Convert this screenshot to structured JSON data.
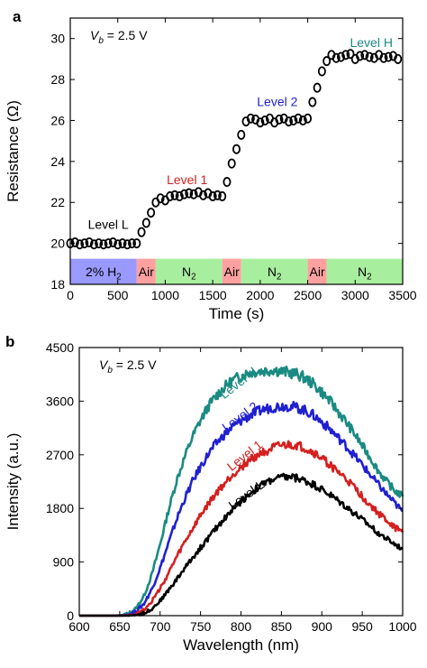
{
  "chart_data": [
    {
      "panel_label": "a",
      "type": "scatter",
      "annotation": "V_b = 2.5 V",
      "annotation_parts": {
        "symbol": "V",
        "subscript": "b",
        "rest": " = 2.5 V"
      },
      "xlabel": "Time (s)",
      "ylabel": "Resistance (Ω)",
      "xlim": [
        0,
        3500
      ],
      "ylim": [
        18,
        31
      ],
      "xticks": [
        0,
        500,
        1000,
        1500,
        2000,
        2500,
        3000,
        3500
      ],
      "yticks": [
        18,
        20,
        22,
        24,
        26,
        28,
        30
      ],
      "grid": false,
      "marker": "open-circle",
      "gas_bands": [
        {
          "label": "2% H",
          "subscript": "2",
          "start": 0,
          "end": 700,
          "color": "#9999ff"
        },
        {
          "label": "Air",
          "subscript": "",
          "start": 700,
          "end": 900,
          "color": "#ffa0a0"
        },
        {
          "label": "N",
          "subscript": "2",
          "start": 900,
          "end": 1600,
          "color": "#a8ee9f"
        },
        {
          "label": "Air",
          "subscript": "",
          "start": 1600,
          "end": 1800,
          "color": "#ffa0a0"
        },
        {
          "label": "N",
          "subscript": "2",
          "start": 1800,
          "end": 2500,
          "color": "#a8ee9f"
        },
        {
          "label": "Air",
          "subscript": "",
          "start": 2500,
          "end": 2700,
          "color": "#ffa0a0"
        },
        {
          "label": "N",
          "subscript": "2",
          "start": 2700,
          "end": 3500,
          "color": "#a8ee9f"
        }
      ],
      "level_labels": [
        {
          "text": "Level L",
          "x": 400,
          "y": 20.7,
          "color": "#000000"
        },
        {
          "text": "Level 1",
          "x": 1230,
          "y": 22.9,
          "color": "#d42020"
        },
        {
          "text": "Level 2",
          "x": 2180,
          "y": 26.7,
          "color": "#2020d0"
        },
        {
          "text": "Level H",
          "x": 3170,
          "y": 29.6,
          "color": "#1a8a82"
        }
      ],
      "series": [
        {
          "x": [
            0,
            50,
            100,
            150,
            200,
            250,
            300,
            350,
            400,
            450,
            500,
            550,
            600,
            650,
            700,
            750,
            800,
            850,
            900,
            950,
            1000,
            1050,
            1100,
            1150,
            1200,
            1250,
            1300,
            1350,
            1400,
            1450,
            1500,
            1550,
            1600,
            1650,
            1700,
            1750,
            1800,
            1850,
            1900,
            1950,
            2000,
            2050,
            2100,
            2150,
            2200,
            2250,
            2300,
            2350,
            2400,
            2450,
            2500,
            2550,
            2600,
            2650,
            2700,
            2750,
            2800,
            2850,
            2900,
            2950,
            3000,
            3050,
            3100,
            3150,
            3200,
            3250,
            3300,
            3350,
            3400,
            3450
          ],
          "values": [
            20.0,
            20.05,
            19.95,
            20.0,
            20.05,
            19.95,
            20.0,
            19.95,
            20.0,
            20.05,
            19.95,
            20.0,
            19.95,
            20.0,
            20.0,
            20.55,
            21.0,
            21.5,
            22.0,
            22.2,
            22.1,
            22.3,
            22.35,
            22.3,
            22.4,
            22.45,
            22.4,
            22.5,
            22.35,
            22.45,
            22.3,
            22.35,
            22.3,
            23.0,
            23.9,
            24.6,
            25.3,
            25.95,
            26.1,
            26.05,
            25.9,
            26.0,
            26.1,
            25.9,
            26.05,
            26.1,
            25.95,
            26.0,
            26.1,
            26.0,
            26.1,
            26.9,
            27.6,
            28.4,
            28.9,
            29.2,
            29.05,
            29.1,
            29.2,
            29.25,
            29.0,
            29.15,
            29.2,
            29.1,
            29.05,
            29.2,
            29.05,
            29.1,
            29.15,
            29.0
          ]
        }
      ]
    },
    {
      "panel_label": "b",
      "type": "line",
      "annotation": "V_b = 2.5 V",
      "annotation_parts": {
        "symbol": "V",
        "subscript": "b",
        "rest": " = 2.5 V"
      },
      "xlabel": "Wavelength (nm)",
      "ylabel": "Intensity (a.u.)",
      "xlim": [
        600,
        1000
      ],
      "ylim": [
        0,
        4500
      ],
      "xticks": [
        600,
        650,
        700,
        750,
        800,
        850,
        900,
        950,
        1000
      ],
      "yticks": [
        0,
        900,
        1800,
        2700,
        3600,
        4500
      ],
      "grid": false,
      "x": [
        600,
        610,
        620,
        630,
        640,
        650,
        660,
        670,
        680,
        690,
        700,
        710,
        720,
        730,
        740,
        750,
        760,
        770,
        780,
        790,
        800,
        810,
        820,
        830,
        840,
        850,
        860,
        870,
        880,
        890,
        900,
        910,
        920,
        930,
        940,
        950,
        960,
        970,
        980,
        990,
        1000
      ],
      "series": [
        {
          "name": "Level H",
          "color": "#1a8a82",
          "label_x": 800,
          "label_y": 3850,
          "label_angle": -38,
          "values": [
            0,
            0,
            0,
            0,
            0,
            5,
            30,
            120,
            330,
            700,
            1200,
            1750,
            2250,
            2650,
            3000,
            3280,
            3520,
            3700,
            3840,
            3950,
            4020,
            4080,
            4100,
            4110,
            4130,
            4100,
            4080,
            4050,
            3980,
            3880,
            3750,
            3600,
            3430,
            3250,
            3060,
            2850,
            2650,
            2430,
            2250,
            2100,
            2000
          ]
        },
        {
          "name": "Level 2",
          "color": "#2020d0",
          "label_x": 802,
          "label_y": 3280,
          "label_angle": -36,
          "values": [
            0,
            0,
            0,
            0,
            0,
            2,
            15,
            70,
            200,
            450,
            800,
            1200,
            1600,
            1950,
            2250,
            2500,
            2720,
            2900,
            3050,
            3170,
            3270,
            3350,
            3420,
            3470,
            3500,
            3520,
            3520,
            3490,
            3440,
            3360,
            3250,
            3130,
            2990,
            2850,
            2690,
            2530,
            2360,
            2200,
            2040,
            1890,
            1750
          ]
        },
        {
          "name": "Level 1",
          "color": "#d42020",
          "label_x": 808,
          "label_y": 2630,
          "label_angle": -38,
          "values": [
            0,
            0,
            0,
            0,
            0,
            0,
            5,
            30,
            100,
            250,
            450,
            700,
            970,
            1220,
            1450,
            1680,
            1880,
            2060,
            2220,
            2370,
            2490,
            2600,
            2690,
            2760,
            2810,
            2850,
            2860,
            2850,
            2800,
            2730,
            2640,
            2530,
            2410,
            2290,
            2150,
            2000,
            1850,
            1720,
            1600,
            1480,
            1400
          ]
        },
        {
          "name": "Level L",
          "color": "#000000",
          "label_x": 810,
          "label_y": 1970,
          "label_angle": -36,
          "values": [
            0,
            0,
            0,
            0,
            0,
            0,
            0,
            10,
            40,
            120,
            250,
            420,
            600,
            790,
            970,
            1140,
            1310,
            1480,
            1640,
            1790,
            1920,
            2040,
            2140,
            2230,
            2290,
            2320,
            2330,
            2310,
            2260,
            2200,
            2120,
            2030,
            1930,
            1830,
            1720,
            1610,
            1500,
            1390,
            1290,
            1200,
            1120
          ]
        }
      ]
    }
  ]
}
